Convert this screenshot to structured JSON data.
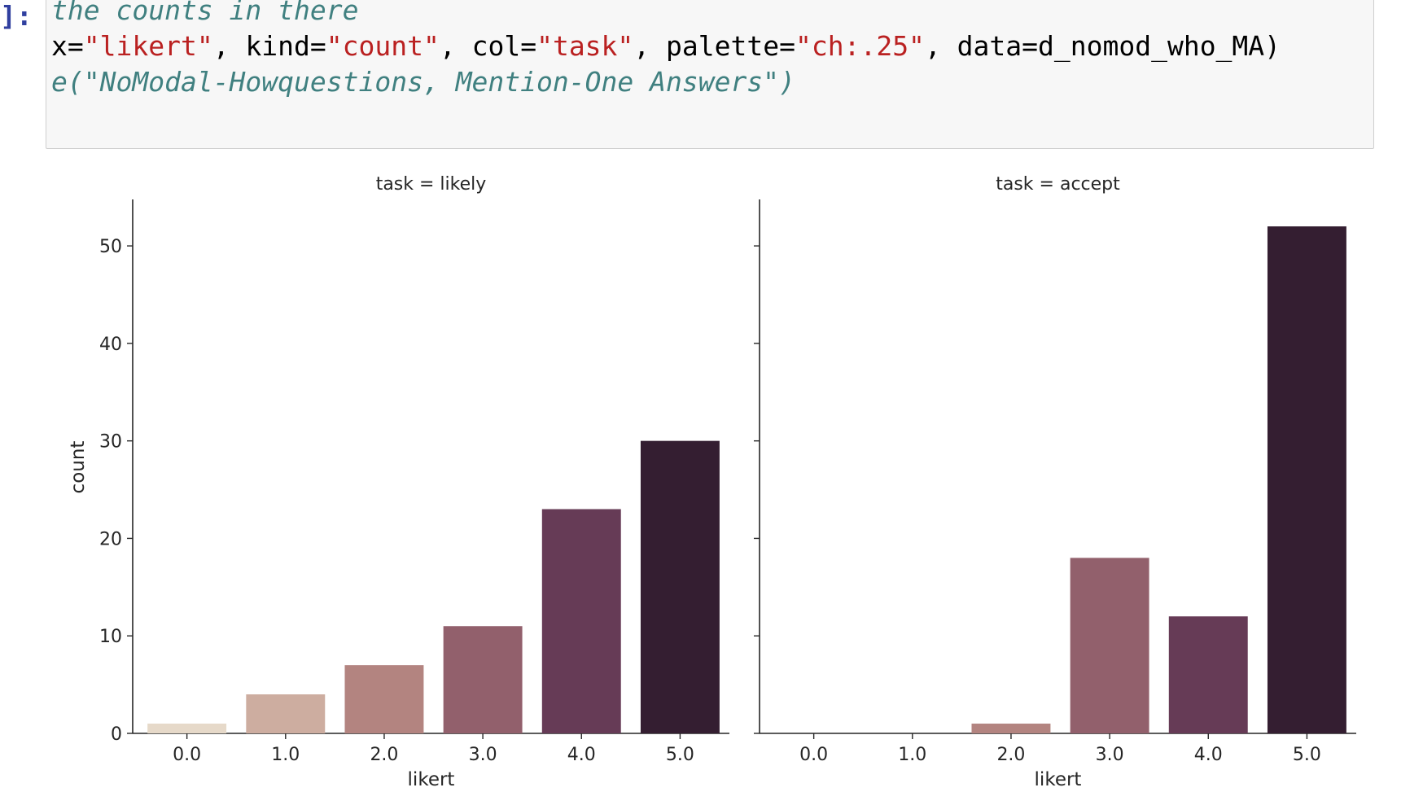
{
  "cell": {
    "prompt": "]:",
    "line1": "the counts in there",
    "line2": {
      "p1": "x=",
      "s1": "\"likert\"",
      "p2": ", kind=",
      "s2": "\"count\"",
      "p3": ", col=",
      "s3": "\"task\"",
      "p4": ", palette=",
      "s4": "\"ch:.25\"",
      "p5": ", data=d_nomod_who_MA)"
    },
    "line3": "e(\"NoModal-Howquestions, Mention-One Answers\")"
  },
  "colors": {
    "prompt": "#303F9F",
    "comment": "#408080",
    "string": "#BA2121",
    "palette": [
      "#e6d9c9",
      "#cdada0",
      "#b38480",
      "#92606c",
      "#663b56",
      "#341e31"
    ]
  },
  "chart_data": [
    {
      "type": "bar",
      "title": "task = likely",
      "categories": [
        "0.0",
        "1.0",
        "2.0",
        "3.0",
        "4.0",
        "5.0"
      ],
      "values": [
        1,
        4,
        7,
        11,
        23,
        30
      ],
      "xlabel": "likert",
      "ylabel": "count",
      "ylim": [
        0,
        54.6
      ],
      "yticks": [
        0,
        10,
        20,
        30,
        40,
        50
      ],
      "grid": false
    },
    {
      "type": "bar",
      "title": "task = accept",
      "categories": [
        "0.0",
        "1.0",
        "2.0",
        "3.0",
        "4.0",
        "5.0"
      ],
      "values": [
        0,
        0,
        1,
        18,
        12,
        52
      ],
      "xlabel": "likert",
      "ylabel": "",
      "ylim": [
        0,
        54.6
      ],
      "yticks": [
        0,
        10,
        20,
        30,
        40,
        50
      ],
      "grid": false
    }
  ]
}
